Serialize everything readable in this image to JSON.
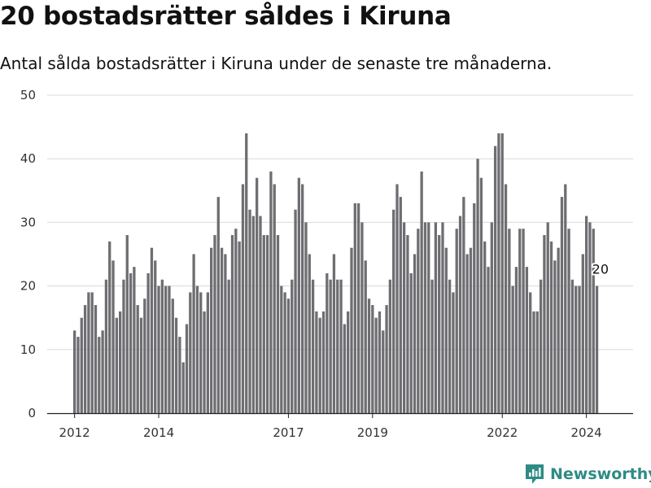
{
  "header": {
    "title": "20 bostadsrätter såldes i Kiruna",
    "subtitle": "Antal sålda bostadsrätter i Kiruna under de senaste tre månaderna."
  },
  "brand": {
    "name": "Newsworthy"
  },
  "colors": {
    "bar": "#6e6e72",
    "highlight": "#1a9a92",
    "grid": "#d9d9d9",
    "brand": "#2e8b85"
  },
  "chart_data": {
    "type": "bar",
    "title": "20 bostadsrätter såldes i Kiruna",
    "subtitle": "Antal sålda bostadsrätter i Kiruna under de senaste tre månaderna.",
    "xlabel": "",
    "ylabel": "",
    "ylim": [
      0,
      50
    ],
    "yticks": [
      0,
      10,
      20,
      30,
      40,
      50
    ],
    "grid": true,
    "x_ticks": [
      {
        "label": "2012",
        "index": 0
      },
      {
        "label": "2014",
        "index": 24
      },
      {
        "label": "2017",
        "index": 61
      },
      {
        "label": "2019",
        "index": 85
      },
      {
        "label": "2022",
        "index": 122
      },
      {
        "label": "2024",
        "index": 146
      }
    ],
    "values": [
      13,
      12,
      15,
      17,
      19,
      19,
      17,
      12,
      13,
      21,
      27,
      24,
      15,
      16,
      21,
      28,
      22,
      23,
      17,
      15,
      18,
      22,
      26,
      24,
      20,
      21,
      20,
      20,
      18,
      15,
      12,
      8,
      14,
      19,
      25,
      20,
      19,
      16,
      19,
      26,
      28,
      34,
      26,
      25,
      21,
      28,
      29,
      27,
      36,
      44,
      32,
      31,
      37,
      31,
      28,
      28,
      38,
      36,
      28,
      20,
      19,
      18,
      21,
      32,
      37,
      36,
      30,
      25,
      21,
      16,
      15,
      16,
      22,
      21,
      25,
      21,
      21,
      14,
      16,
      26,
      33,
      33,
      30,
      24,
      18,
      17,
      15,
      16,
      13,
      17,
      21,
      32,
      36,
      34,
      30,
      28,
      22,
      25,
      29,
      38,
      30,
      30,
      21,
      30,
      28,
      30,
      26,
      21,
      19,
      29,
      31,
      34,
      25,
      26,
      33,
      40,
      37,
      27,
      23,
      30,
      42,
      44,
      44,
      36,
      29,
      20,
      23,
      29,
      29,
      23,
      19,
      16,
      16,
      21,
      28,
      30,
      27,
      24,
      26,
      34,
      36,
      29,
      21,
      20,
      20,
      25,
      31,
      30,
      29,
      20
    ],
    "highlight": {
      "index": 150,
      "value": 20,
      "label": "20"
    }
  }
}
